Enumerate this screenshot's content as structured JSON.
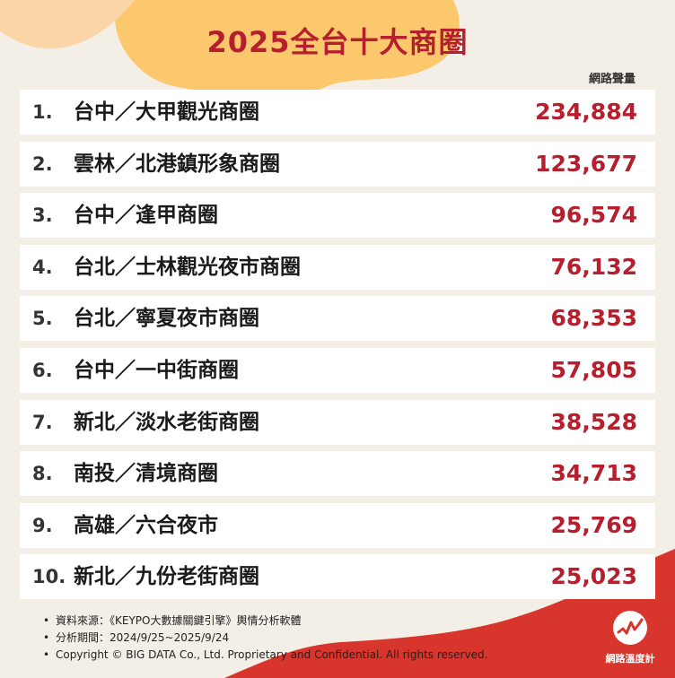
{
  "title": "2025全台十大商圈",
  "column_header": "網路聲量",
  "chart_data": {
    "type": "table",
    "title": "2025全台十大商圈",
    "columns": [
      "",
      "",
      "網路聲量"
    ],
    "rows": [
      {
        "rank": "1.",
        "name": "台中／大甲觀光商圈",
        "value": 234884,
        "value_text": "234,884"
      },
      {
        "rank": "2.",
        "name": "雲林／北港鎮形象商圈",
        "value": 123677,
        "value_text": "123,677"
      },
      {
        "rank": "3.",
        "name": "台中／逢甲商圈",
        "value": 96574,
        "value_text": "96,574"
      },
      {
        "rank": "4.",
        "name": "台北／士林觀光夜市商圈",
        "value": 76132,
        "value_text": "76,132"
      },
      {
        "rank": "5.",
        "name": "台北／寧夏夜市商圈",
        "value": 68353,
        "value_text": "68,353"
      },
      {
        "rank": "6.",
        "name": "台中／一中街商圈",
        "value": 57805,
        "value_text": "57,805"
      },
      {
        "rank": "7.",
        "name": "新北／淡水老街商圈",
        "value": 38528,
        "value_text": "38,528"
      },
      {
        "rank": "8.",
        "name": "南投／清境商圈",
        "value": 34713,
        "value_text": "34,713"
      },
      {
        "rank": "9.",
        "name": "高雄／六合夜市",
        "value": 25769,
        "value_text": "25,769"
      },
      {
        "rank": "10.",
        "name": "新北／九份老街商圈",
        "value": 25023,
        "value_text": "25,023"
      }
    ]
  },
  "footer": {
    "notes": [
      "資料來源：《KEYPO大數據關鍵引擎》輿情分析軟體",
      "分析期間：2024/9/25~2025/9/24",
      "Copyright © BIG DATA Co., Ltd. Proprietary and Confidential. All rights reserved."
    ],
    "bullet": "•"
  },
  "logo": {
    "text": "網路溫度計",
    "icon": "line-chart-logo-icon"
  },
  "colors": {
    "accent_red": "#b51f2e",
    "background": "#f3eee6",
    "blob_yellow": "#fbc86e",
    "blob_peach": "#fbd5a8",
    "corner_red": "#d8352c",
    "row_background": "#ffffff"
  }
}
